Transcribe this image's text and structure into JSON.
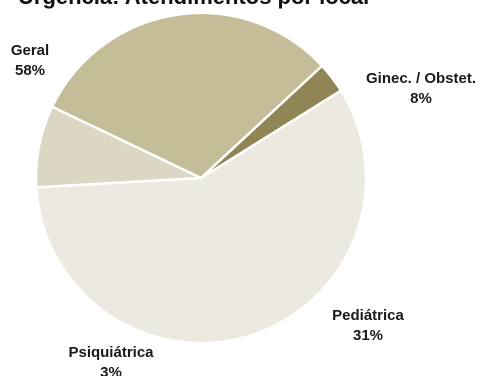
{
  "chart_data": {
    "type": "pie",
    "title": "Urgência: Atendimentos por local",
    "slices": [
      {
        "label": "Geral",
        "value": 58,
        "value_label": "58%",
        "color": "#ece9e0"
      },
      {
        "label": "Ginec. / Obstet.",
        "value": 8,
        "value_label": "8%",
        "color": "#dcd7c3"
      },
      {
        "label": "Pediátrica",
        "value": 31,
        "value_label": "31%",
        "color": "#c4bd98"
      },
      {
        "label": "Psiquiátrica",
        "value": 3,
        "value_label": "3%",
        "color": "#8f8555"
      }
    ],
    "start_angle_deg": 58,
    "direction": "clockwise",
    "slice_border_color": "#ffffff",
    "legend": "none"
  }
}
